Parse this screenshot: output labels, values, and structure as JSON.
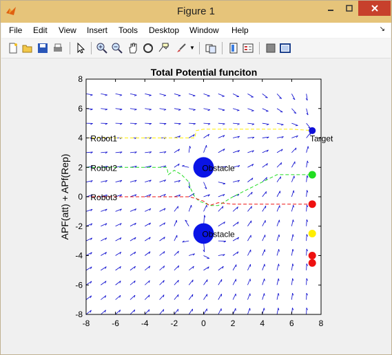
{
  "window": {
    "title": "Figure 1"
  },
  "menu": [
    "File",
    "Edit",
    "View",
    "Insert",
    "Tools",
    "Desktop",
    "Window",
    "Help"
  ],
  "toolbar": {
    "icons": [
      "new-figure-icon",
      "open-file-icon",
      "save-icon",
      "print-icon",
      "pointer-icon",
      "zoom-in-icon",
      "zoom-out-icon",
      "pan-icon",
      "rotate-3d-icon",
      "data-cursor-icon",
      "brush-icon",
      "link-icon",
      "colorbar-icon",
      "legend-icon",
      "hide-plot-tools-icon",
      "show-plot-tools-icon"
    ]
  },
  "chart_data": {
    "type": "scatter",
    "title": "Total Potential funciton",
    "ylabel": "APF(att) + APf(Rep)",
    "xlabel": "",
    "xlim": [
      -8,
      8
    ],
    "ylim": [
      -8,
      8
    ],
    "xticks": [
      "-8",
      "-6",
      "-4",
      "-2",
      "0",
      "2",
      "4",
      "6",
      "8"
    ],
    "yticks": [
      "8",
      "6",
      "4",
      "2",
      "0",
      "-2",
      "-4",
      "-6",
      "-8"
    ],
    "colors": {
      "field_arrows": "#0000cc",
      "obstacle": "#0a14e6",
      "robot1": "#ffee00",
      "robot2": "#22dd22",
      "robot3": "#ee1111",
      "target": "#1010d8"
    },
    "text_labels": [
      {
        "text": "Robot1",
        "x": -7.7,
        "y": 3.95
      },
      {
        "text": "Robot2",
        "x": -7.7,
        "y": 1.95
      },
      {
        "text": "Robot3",
        "x": -7.7,
        "y": -0.05
      },
      {
        "text": "Obstacle",
        "x": -0.1,
        "y": 1.95
      },
      {
        "text": "Obstacle",
        "x": -0.1,
        "y": -2.55
      },
      {
        "text": "Target",
        "x": 7.25,
        "y": 3.95
      }
    ],
    "obstacles": [
      {
        "x": 0,
        "y": 2,
        "r": 0.7
      },
      {
        "x": 0,
        "y": -2.5,
        "r": 0.7
      }
    ],
    "target": {
      "x": 7.4,
      "y": 4.5
    },
    "markers": [
      {
        "x": 7.4,
        "y": 1.5,
        "color": "#22dd22"
      },
      {
        "x": 7.4,
        "y": -0.5,
        "color": "#ee1111"
      },
      {
        "x": 7.4,
        "y": -2.5,
        "color": "#ffee00"
      },
      {
        "x": 7.4,
        "y": -4.0,
        "color": "#ee1111"
      },
      {
        "x": 7.4,
        "y": -4.5,
        "color": "#ee1111"
      }
    ],
    "series": [
      {
        "color": "#ffee00",
        "points": [
          [
            -8,
            4
          ],
          [
            -3,
            4
          ],
          [
            -2,
            4
          ],
          [
            -0.6,
            4
          ],
          [
            -0.5,
            4.5
          ],
          [
            0,
            4.6
          ],
          [
            2,
            4.6
          ],
          [
            4,
            4.6
          ],
          [
            6,
            4.6
          ],
          [
            7.4,
            4.5
          ]
        ]
      },
      {
        "color": "#22dd22",
        "points": [
          [
            -8,
            2
          ],
          [
            -2.5,
            2
          ],
          [
            -2.4,
            1.5
          ],
          [
            -2.0,
            1.8
          ],
          [
            -1.5,
            1.5
          ],
          [
            -1.2,
            1.2
          ],
          [
            -1.0,
            1.0
          ],
          [
            -0.9,
            0.6
          ],
          [
            -0.6,
            0.0
          ],
          [
            -0.3,
            -0.3
          ],
          [
            0.5,
            -0.6
          ],
          [
            1.0,
            -0.6
          ],
          [
            2.0,
            0.0
          ],
          [
            3.0,
            0.5
          ],
          [
            5.0,
            1.5
          ],
          [
            7.4,
            1.5
          ]
        ]
      },
      {
        "color": "#ee1111",
        "points": [
          [
            -8,
            0
          ],
          [
            -1.0,
            0
          ],
          [
            -0.6,
            -0.1
          ],
          [
            0.0,
            -0.3
          ],
          [
            0.4,
            -0.6
          ],
          [
            1.0,
            -0.4
          ],
          [
            2.0,
            -0.5
          ],
          [
            7.4,
            -0.5
          ]
        ]
      }
    ]
  }
}
